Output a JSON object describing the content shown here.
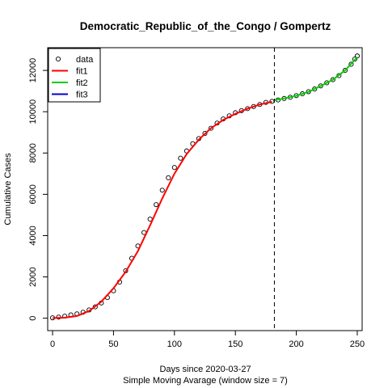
{
  "chart_data": {
    "type": "scatter",
    "title": "Democratic_Republic_of_the_Congo / Gompertz",
    "xlabel": "Days since 2020-03-27",
    "subtitle": "Simple Moving Avarage (window size = 7)",
    "ylabel": "Cumulative Cases",
    "xlim": [
      -4,
      254
    ],
    "ylim": [
      -600,
      13100
    ],
    "x_ticks": [
      0,
      50,
      100,
      150,
      200,
      250
    ],
    "y_ticks": [
      0,
      2000,
      4000,
      6000,
      8000,
      10000,
      12000
    ],
    "vline_x": 182,
    "legend_position": "top-left",
    "grid": false,
    "series": [
      {
        "name": "data",
        "style": "points",
        "color": "#000000",
        "points": [
          [
            0,
            20
          ],
          [
            5,
            55
          ],
          [
            10,
            100
          ],
          [
            15,
            160
          ],
          [
            20,
            210
          ],
          [
            25,
            290
          ],
          [
            30,
            400
          ],
          [
            35,
            550
          ],
          [
            40,
            740
          ],
          [
            45,
            1000
          ],
          [
            50,
            1330
          ],
          [
            55,
            1750
          ],
          [
            60,
            2300
          ],
          [
            65,
            2900
          ],
          [
            70,
            3500
          ],
          [
            75,
            4150
          ],
          [
            80,
            4800
          ],
          [
            85,
            5500
          ],
          [
            90,
            6200
          ],
          [
            95,
            6800
          ],
          [
            100,
            7300
          ],
          [
            105,
            7750
          ],
          [
            110,
            8100
          ],
          [
            115,
            8450
          ],
          [
            120,
            8700
          ],
          [
            125,
            8950
          ],
          [
            130,
            9200
          ],
          [
            135,
            9450
          ],
          [
            140,
            9650
          ],
          [
            145,
            9800
          ],
          [
            150,
            9950
          ],
          [
            155,
            10050
          ],
          [
            160,
            10150
          ],
          [
            165,
            10250
          ],
          [
            170,
            10350
          ],
          [
            175,
            10450
          ],
          [
            180,
            10500
          ],
          [
            185,
            10570
          ],
          [
            190,
            10640
          ],
          [
            195,
            10700
          ],
          [
            200,
            10780
          ],
          [
            205,
            10870
          ],
          [
            210,
            10970
          ],
          [
            215,
            11100
          ],
          [
            220,
            11250
          ],
          [
            225,
            11400
          ],
          [
            230,
            11550
          ],
          [
            235,
            11750
          ],
          [
            240,
            12000
          ],
          [
            245,
            12300
          ],
          [
            248,
            12550
          ],
          [
            250,
            12700
          ]
        ]
      },
      {
        "name": "fit1",
        "style": "line",
        "color": "#ff0000",
        "points": [
          [
            0,
            5
          ],
          [
            10,
            25
          ],
          [
            20,
            110
          ],
          [
            30,
            350
          ],
          [
            40,
            800
          ],
          [
            50,
            1450
          ],
          [
            60,
            2250
          ],
          [
            70,
            3250
          ],
          [
            80,
            4500
          ],
          [
            90,
            5800
          ],
          [
            100,
            7000
          ],
          [
            110,
            7950
          ],
          [
            120,
            8650
          ],
          [
            130,
            9200
          ],
          [
            140,
            9600
          ],
          [
            150,
            9900
          ],
          [
            160,
            10150
          ],
          [
            170,
            10350
          ],
          [
            180,
            10480
          ]
        ]
      },
      {
        "name": "fit2",
        "style": "line",
        "color": "#00cd00",
        "points": [
          [
            182,
            10560
          ],
          [
            190,
            10640
          ],
          [
            200,
            10770
          ],
          [
            210,
            10960
          ],
          [
            220,
            11250
          ],
          [
            230,
            11550
          ],
          [
            240,
            12000
          ],
          [
            250,
            12650
          ]
        ]
      },
      {
        "name": "fit3",
        "style": "line",
        "color": "#0000cd",
        "points": []
      }
    ]
  }
}
